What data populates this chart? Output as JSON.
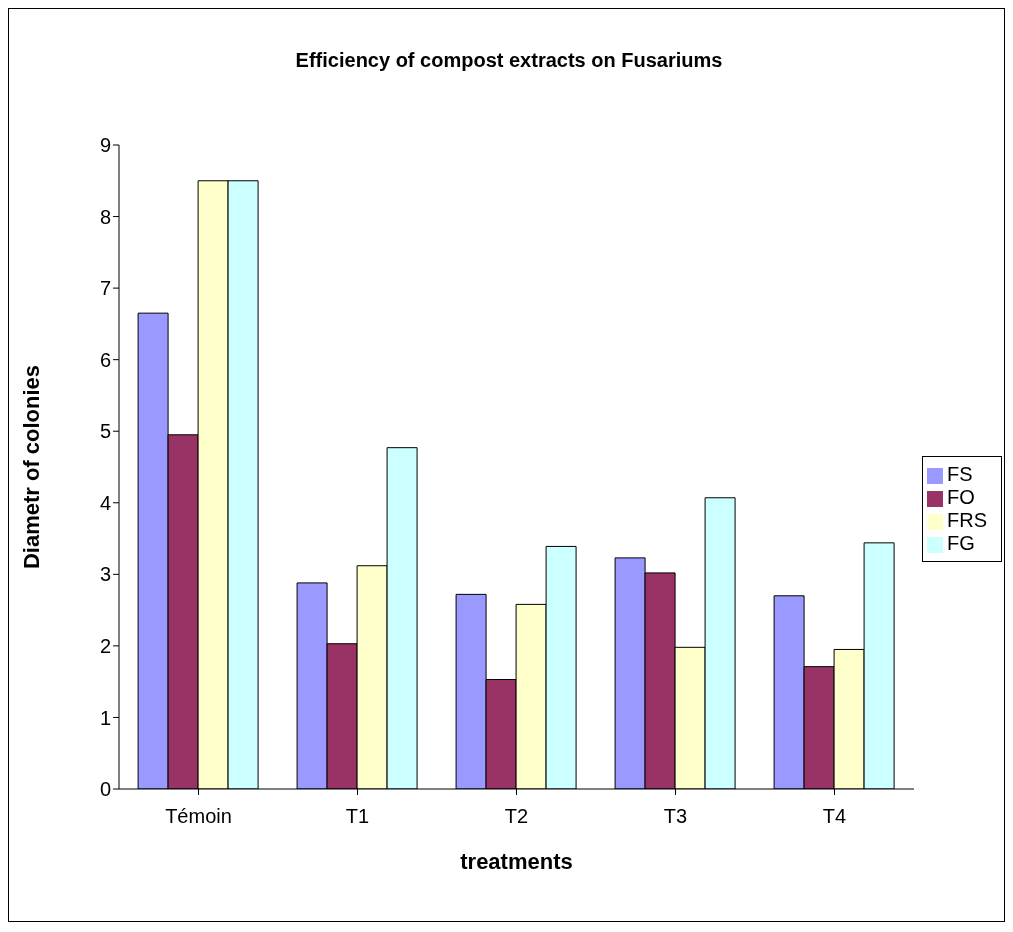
{
  "chart_data": {
    "type": "bar",
    "title": "Efficiency of compost extracts on  Fusariums",
    "xlabel": "treatments",
    "ylabel": "Diametr of colonies",
    "categories": [
      "Témoin",
      "T1",
      "T2",
      "T3",
      "T4"
    ],
    "series": [
      {
        "name": "FS",
        "color": "#9999ff",
        "values": [
          6.65,
          2.88,
          2.72,
          3.23,
          2.7
        ]
      },
      {
        "name": "FO",
        "color": "#993366",
        "values": [
          4.95,
          2.03,
          1.53,
          3.02,
          1.71
        ]
      },
      {
        "name": "FRS",
        "color": "#ffffcc",
        "values": [
          8.5,
          3.12,
          2.58,
          1.98,
          1.95
        ]
      },
      {
        "name": "FG",
        "color": "#ccffff",
        "values": [
          8.5,
          4.77,
          3.39,
          4.07,
          3.44
        ]
      }
    ],
    "ylim": [
      0,
      9
    ],
    "yticks": [
      0,
      1,
      2,
      3,
      4,
      5,
      6,
      7,
      8,
      9
    ],
    "grid": false,
    "legend": "right"
  }
}
